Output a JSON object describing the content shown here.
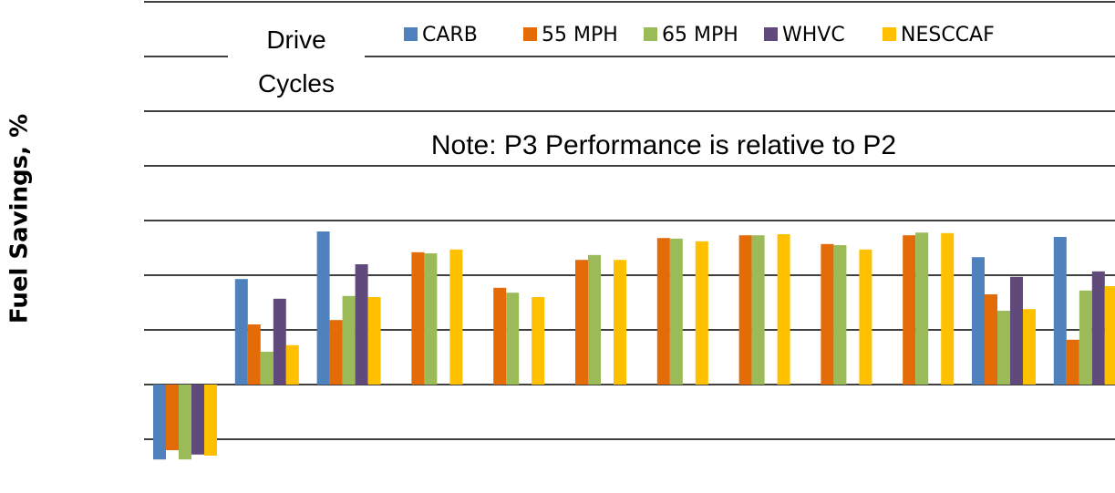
{
  "chart_data": {
    "type": "bar",
    "ylabel": "Fuel Savings, %",
    "annotation": "Note: P3 Performance is relative to P2",
    "legend_title": "Drive Cycles",
    "categories": [
      null,
      null,
      null,
      null,
      null,
      null,
      null,
      null,
      null,
      null,
      null,
      null
    ],
    "series": [
      {
        "name": "CARB",
        "color": "#4f81bd",
        "values": [
          -1.37,
          1.93,
          2.8,
          null,
          null,
          null,
          null,
          null,
          null,
          null,
          2.33,
          2.7
        ]
      },
      {
        "name": "55 MPH",
        "color": "#e36c09",
        "values": [
          -1.2,
          1.1,
          1.18,
          2.42,
          1.77,
          2.28,
          2.68,
          2.73,
          2.57,
          2.73,
          1.65,
          0.82
        ]
      },
      {
        "name": "65 MPH",
        "color": "#9bbb59",
        "values": [
          -1.37,
          0.6,
          1.62,
          2.4,
          1.68,
          2.37,
          2.67,
          2.73,
          2.55,
          2.78,
          1.35,
          1.72
        ]
      },
      {
        "name": "WHVC",
        "color": "#604a7b",
        "values": [
          -1.28,
          1.57,
          2.2,
          null,
          null,
          null,
          null,
          null,
          null,
          null,
          1.97,
          2.07
        ]
      },
      {
        "name": "NESCCAF",
        "color": "#ffc000",
        "values": [
          -1.3,
          0.72,
          1.6,
          2.47,
          1.6,
          2.28,
          2.62,
          2.75,
          2.47,
          2.77,
          1.38,
          1.8
        ]
      }
    ],
    "ylim": [
      -1.5,
      7
    ],
    "yticks": [
      -1,
      0,
      1,
      2,
      3,
      4,
      5,
      6,
      7
    ],
    "grid": true
  }
}
